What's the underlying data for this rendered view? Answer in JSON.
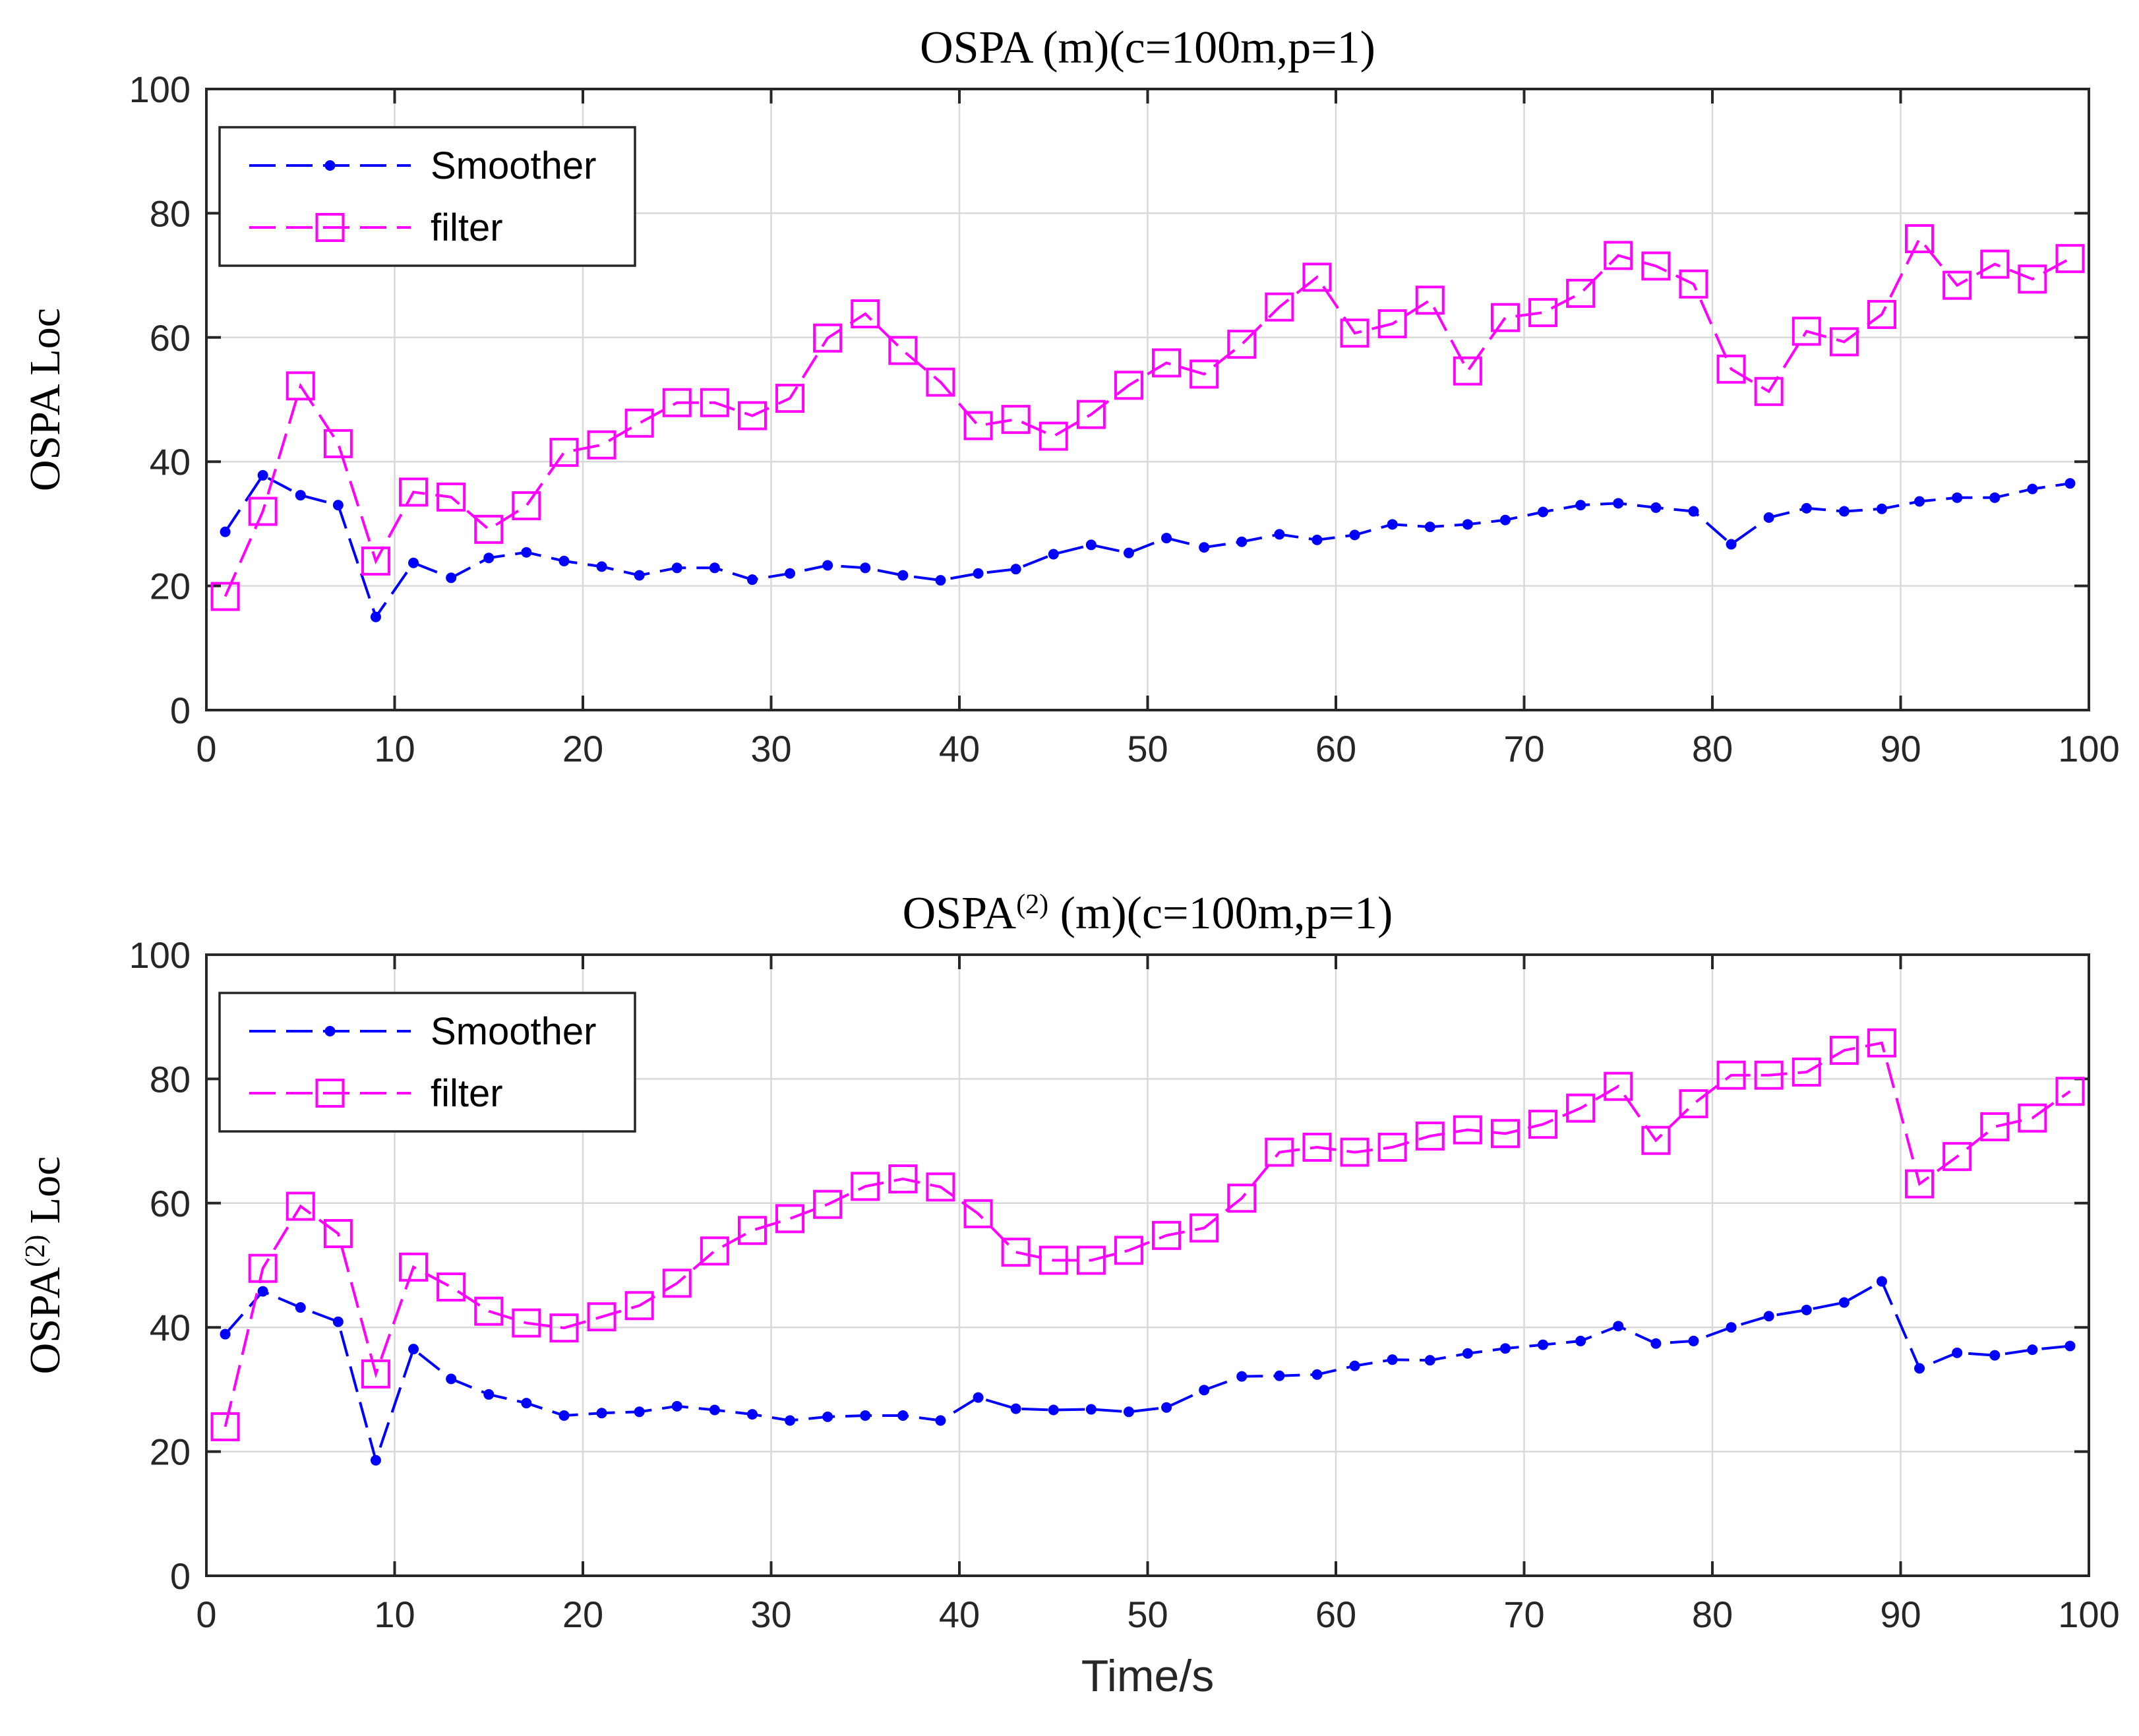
{
  "colors": {
    "smoother": "#0000ff",
    "filter": "#ff00ff",
    "axis": "#262626",
    "grid": "#d9d9d9"
  },
  "chart_data": [
    {
      "type": "line",
      "title_main": "OSPA",
      "title_sup": "",
      "title_rest": " (m)(c=100m,p=1)",
      "ylabel_main": "OSPA",
      "ylabel_sup": "",
      "ylabel_rest": " Loc",
      "xlabel": "",
      "xlim": [
        0,
        100
      ],
      "ylim": [
        0,
        100
      ],
      "xticks": [
        "0",
        "10",
        "20",
        "30",
        "40",
        "50",
        "60",
        "70",
        "80",
        "90",
        "100"
      ],
      "yticks": [
        "0",
        "20",
        "40",
        "60",
        "80",
        "100"
      ],
      "grid": true,
      "legend_position": "top-left",
      "x": [
        1,
        3,
        5,
        7,
        9,
        11,
        13,
        15,
        17,
        19,
        21,
        23,
        25,
        27,
        29,
        31,
        33,
        35,
        37,
        39,
        41,
        43,
        45,
        47,
        49,
        51,
        53,
        55,
        57,
        59,
        61,
        63,
        65,
        67,
        69,
        71,
        73,
        75,
        77,
        79,
        81,
        83,
        85,
        87,
        89,
        91,
        93,
        95,
        97,
        99
      ],
      "series": [
        {
          "name": "Smoother",
          "marker": "dot",
          "color": "#0000ff",
          "values": [
            28.7,
            37.8,
            34.6,
            33.0,
            15.0,
            23.7,
            21.3,
            24.5,
            25.4,
            24.0,
            23.1,
            21.7,
            22.9,
            22.9,
            21.0,
            22.0,
            23.3,
            22.9,
            21.7,
            20.9,
            22.0,
            22.7,
            25.1,
            26.6,
            25.3,
            27.7,
            26.2,
            27.1,
            28.3,
            27.4,
            28.2,
            29.9,
            29.5,
            29.9,
            30.6,
            31.9,
            33.0,
            33.3,
            32.6,
            32.0,
            26.7,
            31.0,
            32.5,
            32.0,
            32.4,
            33.6,
            34.2,
            34.2,
            35.6,
            36.5
          ]
        },
        {
          "name": "filter",
          "marker": "square",
          "color": "#ff00ff",
          "values": [
            18.3,
            32.0,
            52.2,
            42.9,
            24.0,
            35.1,
            34.3,
            29.1,
            32.9,
            41.5,
            42.7,
            46.2,
            49.5,
            49.5,
            47.4,
            50.2,
            59.9,
            63.8,
            57.9,
            52.8,
            45.8,
            46.8,
            44.1,
            47.6,
            52.3,
            55.9,
            54.1,
            58.9,
            64.9,
            69.7,
            60.7,
            62.2,
            66.0,
            54.6,
            63.2,
            64.0,
            67.1,
            73.2,
            71.5,
            68.6,
            54.9,
            51.3,
            61.0,
            59.3,
            63.7,
            75.9,
            68.4,
            71.8,
            69.4,
            72.7
          ]
        }
      ]
    },
    {
      "type": "line",
      "title_main": "OSPA",
      "title_sup": "(2)",
      "title_rest": " (m)(c=100m,p=1)",
      "ylabel_main": "OSPA",
      "ylabel_sup": "(2)",
      "ylabel_rest": " Loc",
      "xlabel": "Time/s",
      "xlim": [
        0,
        100
      ],
      "ylim": [
        0,
        100
      ],
      "xticks": [
        "0",
        "10",
        "20",
        "30",
        "40",
        "50",
        "60",
        "70",
        "80",
        "90",
        "100"
      ],
      "yticks": [
        "0",
        "20",
        "40",
        "60",
        "80",
        "100"
      ],
      "grid": true,
      "legend_position": "top-left",
      "x": [
        1,
        3,
        5,
        7,
        9,
        11,
        13,
        15,
        17,
        19,
        21,
        23,
        25,
        27,
        29,
        31,
        33,
        35,
        37,
        39,
        41,
        43,
        45,
        47,
        49,
        51,
        53,
        55,
        57,
        59,
        61,
        63,
        65,
        67,
        69,
        71,
        73,
        75,
        77,
        79,
        81,
        83,
        85,
        87,
        89,
        91,
        93,
        95,
        97,
        99
      ],
      "series": [
        {
          "name": "Smoother",
          "marker": "dot",
          "color": "#0000ff",
          "values": [
            38.9,
            45.8,
            43.2,
            40.9,
            18.6,
            36.5,
            31.7,
            29.2,
            27.8,
            25.8,
            26.2,
            26.4,
            27.3,
            26.7,
            26.0,
            25.0,
            25.6,
            25.8,
            25.8,
            25.0,
            28.7,
            26.9,
            26.7,
            26.8,
            26.4,
            27.1,
            29.9,
            32.1,
            32.2,
            32.4,
            33.8,
            34.8,
            34.7,
            35.8,
            36.6,
            37.2,
            37.8,
            40.2,
            37.4,
            37.8,
            40.0,
            41.8,
            42.8,
            44.0,
            47.4,
            33.4,
            35.9,
            35.5,
            36.4,
            37.0
          ]
        },
        {
          "name": "filter",
          "marker": "square",
          "color": "#ff00ff",
          "values": [
            24.0,
            49.5,
            59.5,
            55.1,
            32.5,
            49.7,
            46.5,
            42.6,
            40.7,
            39.9,
            41.7,
            43.5,
            47.1,
            52.3,
            55.6,
            57.5,
            59.8,
            62.7,
            63.9,
            62.6,
            58.3,
            52.1,
            50.8,
            50.8,
            52.4,
            54.8,
            56.0,
            60.8,
            68.2,
            69.0,
            68.2,
            69.0,
            70.8,
            71.8,
            71.2,
            72.7,
            75.3,
            78.8,
            70.1,
            76.0,
            80.6,
            80.6,
            81.1,
            84.6,
            85.8,
            63.1,
            67.5,
            72.3,
            73.7,
            78.0
          ]
        }
      ]
    }
  ]
}
